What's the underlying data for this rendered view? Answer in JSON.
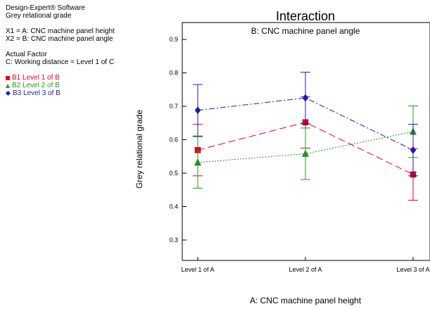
{
  "info": {
    "software": "Design-Expert® Software",
    "response": "Grey relational grade",
    "x1": "X1 = A: CNC machine panel height",
    "x2": "X2 = B: CNC machine panel angle",
    "actual_factor_heading": "Actual Factor",
    "actual_factor": "C: Working distance = Level 1 of C"
  },
  "legend": [
    {
      "label": "B1 Level 1 of B",
      "color": "#e8001c",
      "marker": "square"
    },
    {
      "label": "B2 Level 2 of B",
      "color": "#1a9e1a",
      "marker": "triangle"
    },
    {
      "label": "B3 Level 3 of B",
      "color": "#1a1acc",
      "marker": "diamond"
    }
  ],
  "chart_data": {
    "type": "line",
    "title": "Interaction",
    "subtitle": "B: CNC machine panel angle",
    "xlabel": "A: CNC machine panel height",
    "ylabel": "Grey relational grade",
    "categories": [
      "Level 1 of A",
      "Level 2 of A",
      "Level 3 of A"
    ],
    "ylim": [
      0.25,
      0.95
    ],
    "yticks": [
      0.3,
      0.4,
      0.5,
      0.6,
      0.7,
      0.8,
      0.9
    ],
    "ytick_labels": [
      "0.3",
      "0.4",
      "0.5",
      "0.6",
      "0.7",
      "0.8",
      "0.9"
    ],
    "series": [
      {
        "name": "B1 Level 1 of B",
        "color": "#e8001c",
        "marker": "square",
        "dash": "10,5",
        "values": [
          0.569,
          0.652,
          0.496
        ],
        "lower": [
          0.492,
          0.575,
          0.419
        ],
        "upper": [
          0.646,
          0.729,
          0.573
        ]
      },
      {
        "name": "B2 Level 2 of B",
        "color": "#1a9e1a",
        "marker": "triangle",
        "dash": "2,2",
        "values": [
          0.532,
          0.558,
          0.624
        ],
        "lower": [
          0.455,
          0.481,
          0.547
        ],
        "upper": [
          0.609,
          0.635,
          0.701
        ]
      },
      {
        "name": "B3 Level 3 of B",
        "color": "#1a1acc",
        "marker": "diamond",
        "dash": "8,3,2,3",
        "values": [
          0.688,
          0.725,
          0.569
        ],
        "lower": [
          0.611,
          0.648,
          0.492
        ],
        "upper": [
          0.765,
          0.802,
          0.646
        ]
      }
    ]
  }
}
